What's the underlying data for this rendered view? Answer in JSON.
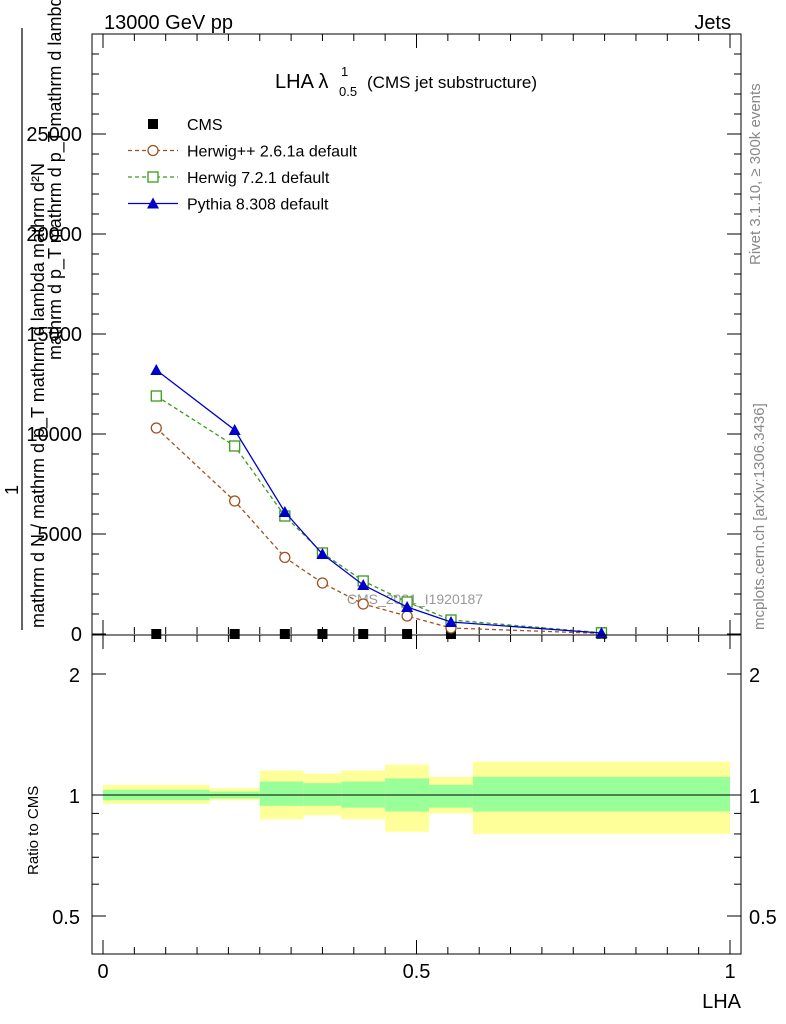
{
  "header": {
    "energy_label": "13000 GeV pp",
    "process_label": "Jets"
  },
  "side_labels": {
    "rivet": "Rivet 3.1.10, ≥ 300k events",
    "mcplots": "mcplots.cern.ch [arXiv:1306.3436]"
  },
  "colors": {
    "cms": "#000000",
    "herwig_pp": "#a0501e",
    "herwig_7": "#3a9a1a",
    "pythia": "#0000cc",
    "band_inner": "#99ff99",
    "band_outer": "#ffff99"
  },
  "chart_data": [
    {
      "type": "line",
      "title": "LHA λ",
      "title_sup": "1",
      "title_sub": "0.5",
      "title_suffix": "(CMS jet substructure)",
      "ylabel_numerator": "mathrm d²N",
      "ylabel_denominator": "mathrm d p_T mathrm d p_T mathrm d lambda",
      "ylabel_lower": "mathrm d N / mathrm d p_T mathrm d lambda",
      "ylabel_one": "1",
      "watermark": "CMS_2021_I1920187",
      "ylim": [
        0,
        30000
      ],
      "xlim": [
        0,
        1
      ],
      "yticks": [
        0,
        5000,
        10000,
        15000,
        20000,
        25000
      ],
      "ytick_labels": [
        "0",
        "5000",
        "10000",
        "15000",
        "20000",
        "25000"
      ],
      "legend_position": "top-left",
      "series": [
        {
          "name": "CMS",
          "marker": "filled-square",
          "x": [
            0.085,
            0.21,
            0.29,
            0.35,
            0.415,
            0.485,
            0.555,
            0.795
          ],
          "values": [
            0,
            0,
            0,
            0,
            0,
            0,
            0,
            0
          ]
        },
        {
          "name": "Herwig++ 2.6.1a default",
          "marker": "open-circle",
          "x": [
            0.085,
            0.21,
            0.29,
            0.35,
            0.415,
            0.485,
            0.555,
            0.795
          ],
          "values": [
            10300,
            6650,
            3830,
            2550,
            1500,
            900,
            300,
            30
          ]
        },
        {
          "name": "Herwig 7.2.1 default",
          "marker": "open-square",
          "x": [
            0.085,
            0.21,
            0.29,
            0.35,
            0.415,
            0.485,
            0.555,
            0.795
          ],
          "values": [
            11900,
            9400,
            5900,
            4050,
            2650,
            1600,
            700,
            60
          ]
        },
        {
          "name": "Pythia 8.308 default",
          "marker": "filled-triangle",
          "x": [
            0.085,
            0.21,
            0.29,
            0.35,
            0.415,
            0.485,
            0.555,
            0.795
          ],
          "values": [
            13200,
            10200,
            6100,
            4000,
            2450,
            1350,
            600,
            50
          ]
        }
      ]
    },
    {
      "type": "area",
      "ylabel": "Ratio to CMS",
      "xlabel": "LHA",
      "xlim": [
        0,
        1
      ],
      "ylim_log": [
        0.4,
        2.3
      ],
      "yticks": [
        0.5,
        1,
        2
      ],
      "ytick_labels": [
        "0.5",
        "1",
        "2"
      ],
      "xticks": [
        0,
        0.5,
        1
      ],
      "xtick_labels": [
        "0",
        "0.5",
        "1"
      ],
      "bins": [
        {
          "x0": 0.0,
          "x1": 0.17,
          "inner": [
            0.97,
            1.03
          ],
          "outer": [
            0.95,
            1.06
          ]
        },
        {
          "x0": 0.17,
          "x1": 0.25,
          "inner": [
            0.98,
            1.02
          ],
          "outer": [
            0.97,
            1.04
          ]
        },
        {
          "x0": 0.25,
          "x1": 0.32,
          "inner": [
            0.94,
            1.08
          ],
          "outer": [
            0.87,
            1.15
          ]
        },
        {
          "x0": 0.32,
          "x1": 0.38,
          "inner": [
            0.94,
            1.07
          ],
          "outer": [
            0.89,
            1.13
          ]
        },
        {
          "x0": 0.38,
          "x1": 0.45,
          "inner": [
            0.93,
            1.08
          ],
          "outer": [
            0.87,
            1.15
          ]
        },
        {
          "x0": 0.45,
          "x1": 0.52,
          "inner": [
            0.91,
            1.1
          ],
          "outer": [
            0.81,
            1.19
          ]
        },
        {
          "x0": 0.52,
          "x1": 0.59,
          "inner": [
            0.93,
            1.06
          ],
          "outer": [
            0.9,
            1.11
          ]
        },
        {
          "x0": 0.59,
          "x1": 1.0,
          "inner": [
            0.91,
            1.11
          ],
          "outer": [
            0.8,
            1.21
          ]
        }
      ]
    }
  ]
}
